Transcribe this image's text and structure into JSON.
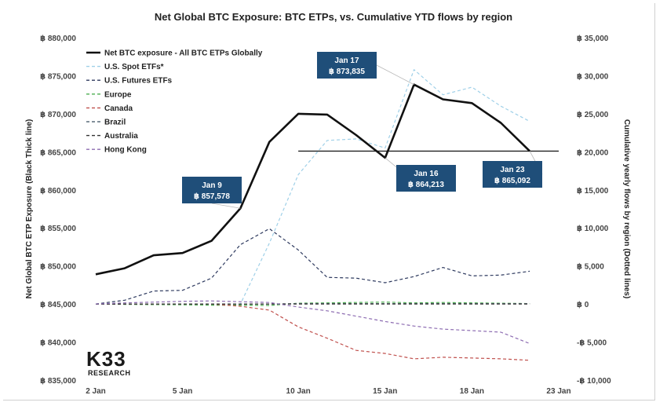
{
  "chart_data": {
    "type": "line",
    "title": "Net Global BTC Exposure: BTC ETPs, vs. Cumulative YTD flows by region",
    "ylabel": "Net Global BTC ETP Exposure (Black Thick line)",
    "y2label": "Cumulative yearly flows by region (Dotted lines)",
    "ylim": [
      835000,
      880000
    ],
    "y2lim": [
      -10000,
      35000
    ],
    "y_ticks": [
      835000,
      840000,
      845000,
      850000,
      855000,
      860000,
      865000,
      870000,
      875000,
      880000
    ],
    "y_tick_labels": [
      "฿ 835,000",
      "฿ 840,000",
      "฿ 845,000",
      "฿ 850,000",
      "฿ 855,000",
      "฿ 860,000",
      "฿ 865,000",
      "฿ 870,000",
      "฿ 875,000",
      "฿ 880,000"
    ],
    "y2_ticks": [
      -10000,
      -5000,
      0,
      5000,
      10000,
      15000,
      20000,
      25000,
      30000,
      35000
    ],
    "y2_tick_labels": [
      "-฿ 10,000",
      "-฿ 5,000",
      "฿ 0",
      "฿ 5,000",
      "฿ 10,000",
      "฿ 15,000",
      "฿ 20,000",
      "฿ 25,000",
      "฿ 30,000",
      "฿ 35,000"
    ],
    "x_ticks": [
      0,
      3,
      7,
      10,
      13,
      16
    ],
    "x_tick_labels": [
      "2 Jan",
      "5 Jan",
      "10 Jan",
      "15 Jan",
      "18 Jan",
      "23 Jan"
    ],
    "x": [
      0,
      1,
      2,
      3,
      4,
      5,
      6,
      7,
      8,
      9,
      10,
      11,
      12,
      13,
      14,
      15,
      16
    ],
    "reference_line": {
      "from_x": 7,
      "to_x": 16,
      "value": 865092,
      "color": "#222222"
    },
    "series": [
      {
        "name": "Net BTC exposure - All BTC ETPs Globally",
        "axis": "left",
        "style": "solid",
        "color": "#111111",
        "values": [
          848900,
          849700,
          851400,
          851700,
          853300,
          857578,
          866300,
          870000,
          869900,
          867200,
          864213,
          873835,
          871900,
          871400,
          868800,
          865092,
          null
        ]
      },
      {
        "name": "U.S. Spot ETFs*",
        "axis": "right",
        "style": "dashed",
        "color": "#9fd0e8",
        "values": [
          0,
          0,
          0,
          0,
          0,
          0,
          8000,
          17000,
          21500,
          21700,
          20500,
          30800,
          27500,
          28500,
          26000,
          24000,
          null
        ]
      },
      {
        "name": "U.S. Futures ETFs",
        "axis": "right",
        "style": "dashed",
        "color": "#2e3a5f",
        "values": [
          0,
          500,
          1700,
          1800,
          3400,
          7800,
          9900,
          7100,
          3500,
          3400,
          2800,
          3600,
          4800,
          3700,
          3800,
          4300,
          null
        ]
      },
      {
        "name": "Europe",
        "axis": "right",
        "style": "dashed",
        "color": "#4caf50",
        "values": [
          0,
          -50,
          -80,
          -100,
          -150,
          -150,
          -200,
          100,
          150,
          200,
          250,
          150,
          200,
          150,
          100,
          50,
          null
        ]
      },
      {
        "name": "Canada",
        "axis": "right",
        "style": "dashed",
        "color": "#c0504d",
        "values": [
          0,
          0,
          0,
          0,
          0,
          -300,
          -800,
          -3000,
          -4500,
          -6100,
          -6500,
          -7200,
          -7000,
          -7100,
          -7200,
          -7400,
          null
        ]
      },
      {
        "name": "Brazil",
        "axis": "right",
        "style": "dashed",
        "color": "#5a6b7a",
        "values": [
          0,
          0,
          0,
          0,
          0,
          0,
          0,
          50,
          50,
          50,
          50,
          50,
          50,
          50,
          50,
          50,
          null
        ]
      },
      {
        "name": "Australia",
        "axis": "right",
        "style": "dashed",
        "color": "#333333",
        "values": [
          0,
          0,
          0,
          0,
          0,
          0,
          0,
          0,
          0,
          0,
          0,
          0,
          0,
          0,
          0,
          0,
          null
        ]
      },
      {
        "name": "Hong Kong",
        "axis": "right",
        "style": "dashed",
        "color": "#8c6bb1",
        "values": [
          0,
          150,
          250,
          350,
          400,
          300,
          200,
          -400,
          -900,
          -1600,
          -2300,
          -2900,
          -3300,
          -3500,
          -3700,
          -5200,
          null
        ]
      }
    ],
    "annotations": [
      {
        "date": "Jan 9",
        "value_text": "฿ 857,578",
        "x": 5,
        "y": 857578
      },
      {
        "date": "Jan 17",
        "value_text": "฿ 873,835",
        "x": 11,
        "y": 873835
      },
      {
        "date": "Jan 16",
        "value_text": "฿ 864,213",
        "x": 10,
        "y": 864213
      },
      {
        "date": "Jan 23",
        "value_text": "฿ 865,092",
        "x": 15,
        "y": 865092
      }
    ],
    "legend_position": "top-left",
    "callout_color": "#1f4e79"
  },
  "logo": {
    "text_top": "K33",
    "text_bottom": "RESEARCH"
  }
}
